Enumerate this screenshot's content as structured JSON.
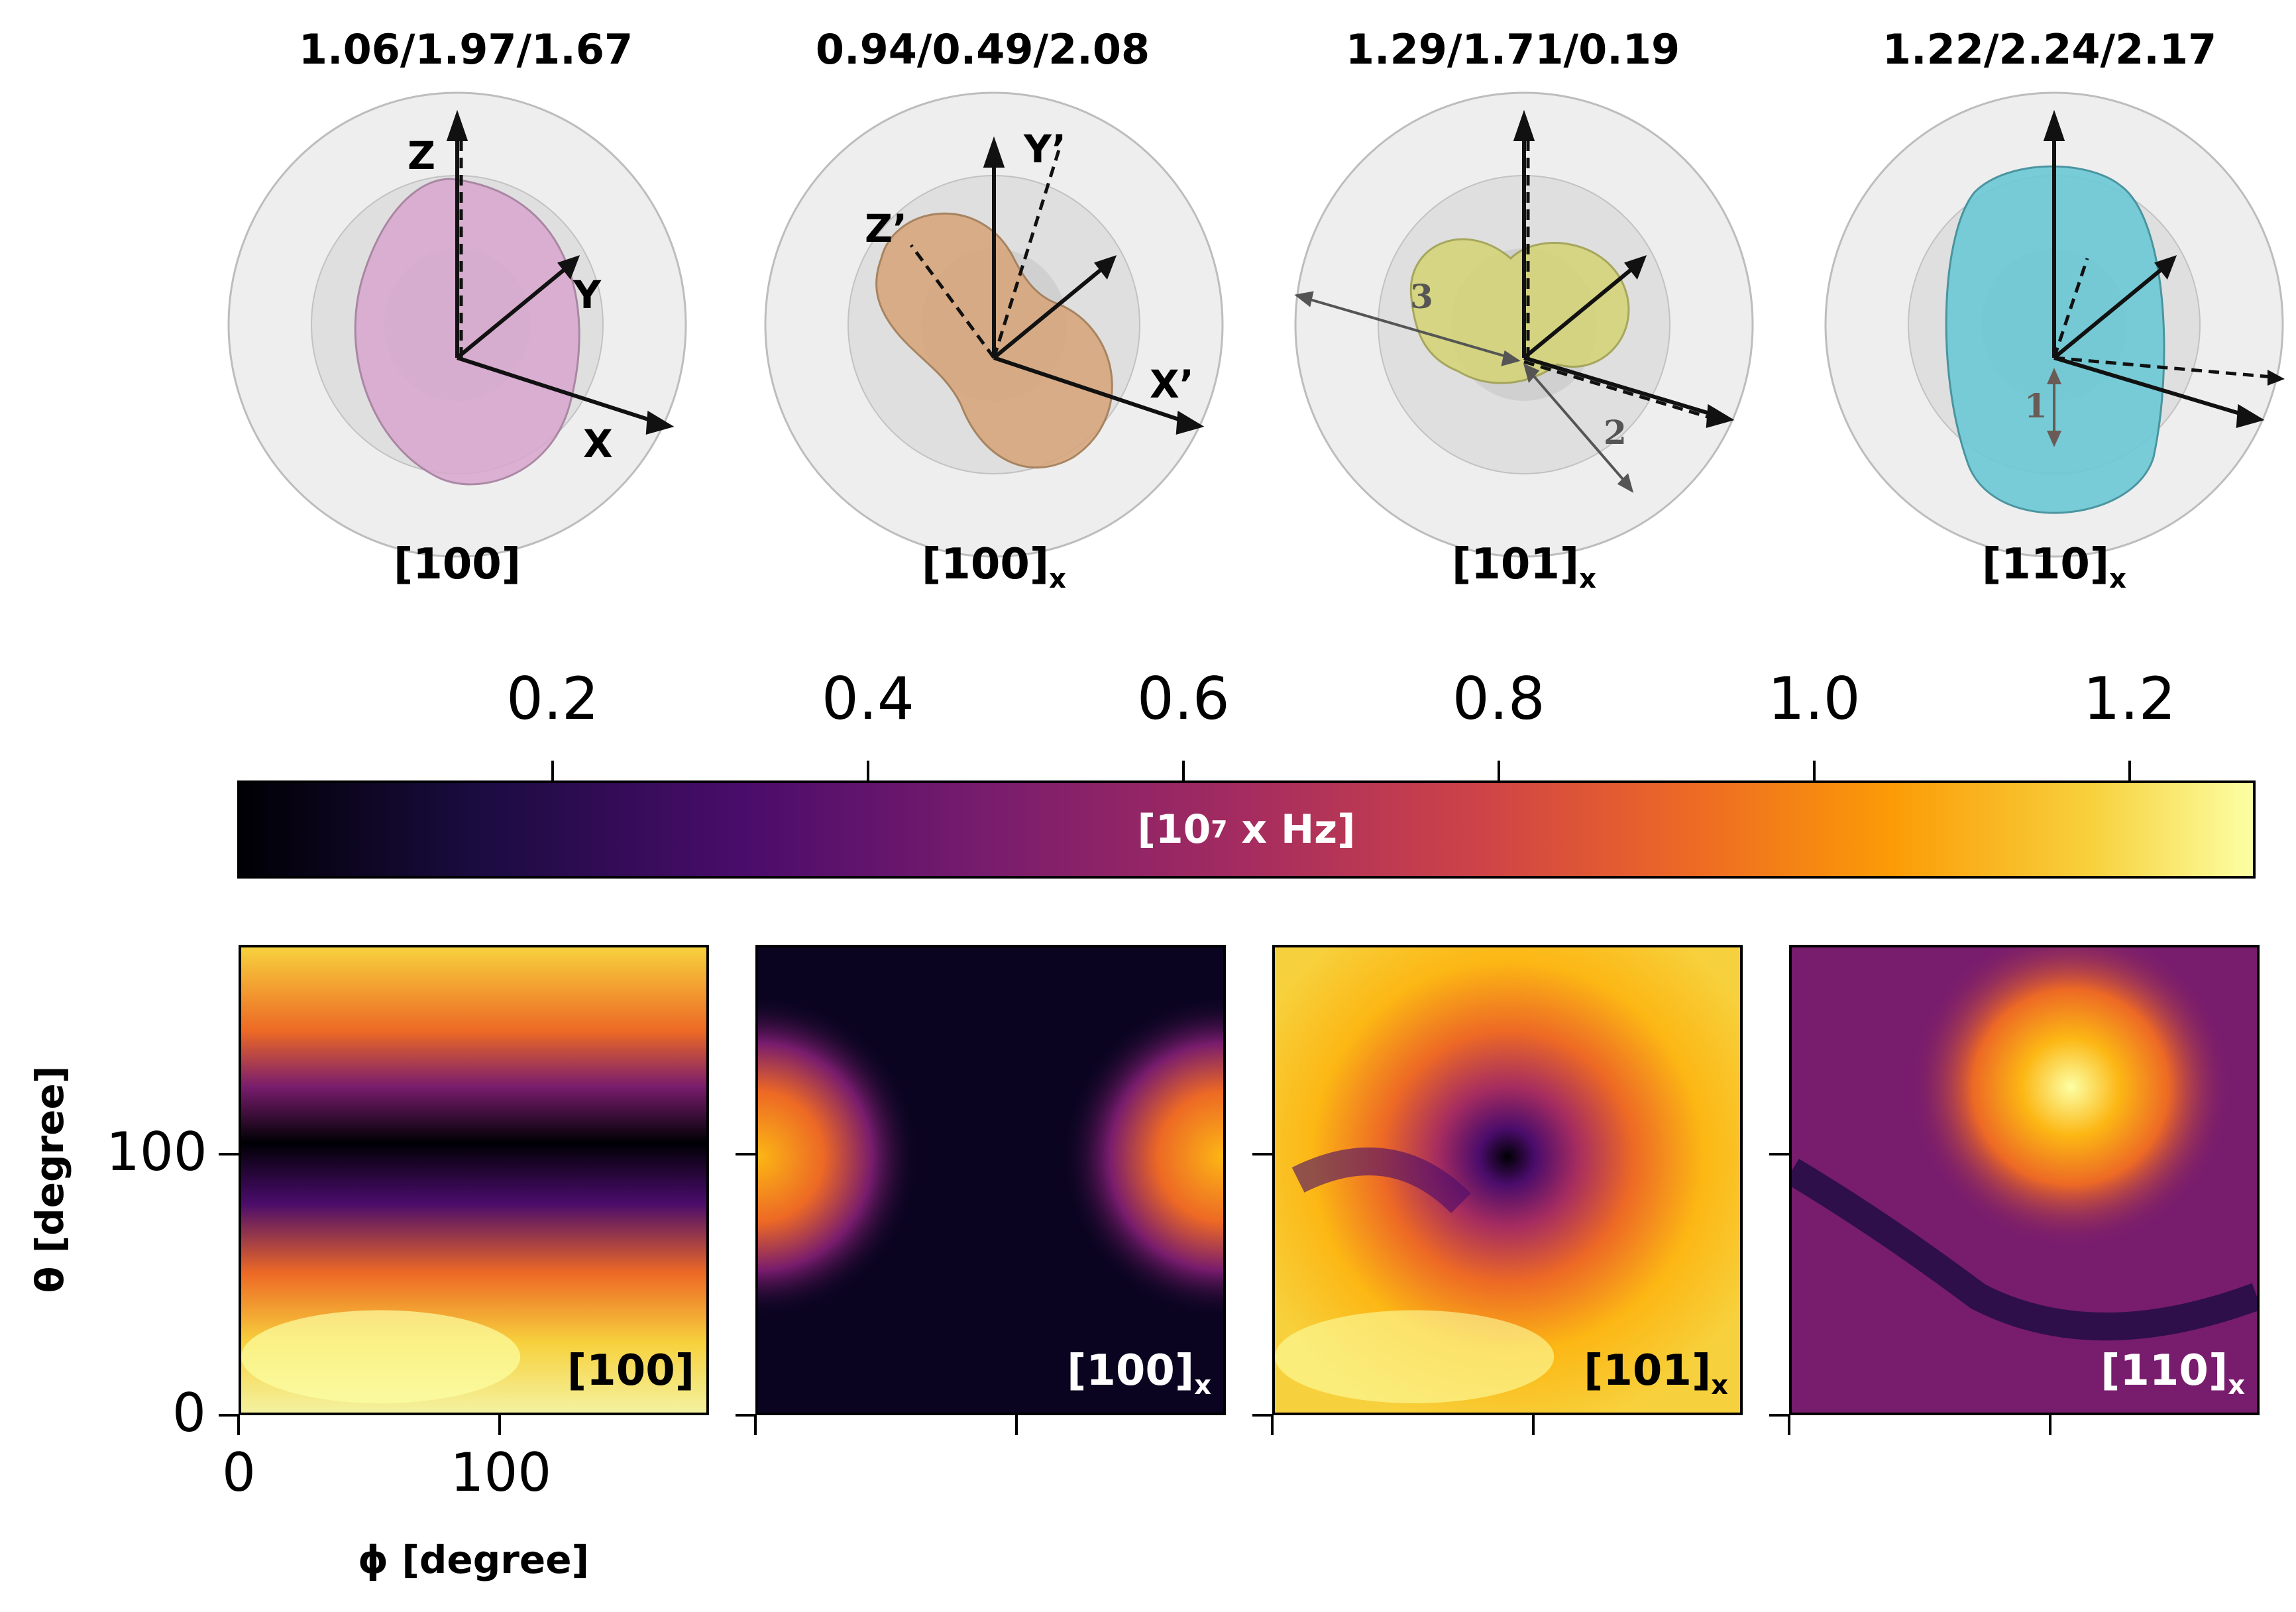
{
  "spheres": [
    {
      "title": "1.06/1.97/1.67",
      "label": "[100]",
      "sub": "",
      "color": "#d8a6cf"
    },
    {
      "title": "0.94/0.49/2.08",
      "label": "[100]",
      "sub": "x",
      "color": "#d6a57a"
    },
    {
      "title": "1.29/1.71/0.19",
      "label": "[101]",
      "sub": "x",
      "color": "#d4d47a"
    },
    {
      "title": "1.22/2.24/2.17",
      "label": "[110]",
      "sub": "x",
      "color": "#6cc9d6"
    }
  ],
  "axes_labels": {
    "z": "Z",
    "y": "Y",
    "x": "X",
    "zp": "Z’",
    "yp": "Y’",
    "xp": "X’",
    "n1": "1",
    "n2": "2",
    "n3": "3"
  },
  "colorbar": {
    "label_main": "[10",
    "label_exp": "7",
    "label_rest": "x Hz]",
    "ticks": [
      "0.2",
      "0.4",
      "0.6",
      "0.8",
      "1.0",
      "1.2"
    ],
    "range": [
      0.0,
      1.28
    ],
    "colormap": "inferno"
  },
  "chart_data": {
    "type": "heatmap",
    "xlabel": "ϕ [degree]",
    "ylabel": "θ [degree]",
    "xlim": [
      0,
      180
    ],
    "ylim": [
      0,
      180
    ],
    "x_ticks": [
      "0",
      "100"
    ],
    "y_ticks": [
      "0",
      "100"
    ],
    "panels": [
      {
        "label": "[100]",
        "sub": ""
      },
      {
        "label": "[100]",
        "sub": "x"
      },
      {
        "label": "[101]",
        "sub": "x"
      },
      {
        "label": "[110]",
        "sub": "x"
      }
    ]
  }
}
